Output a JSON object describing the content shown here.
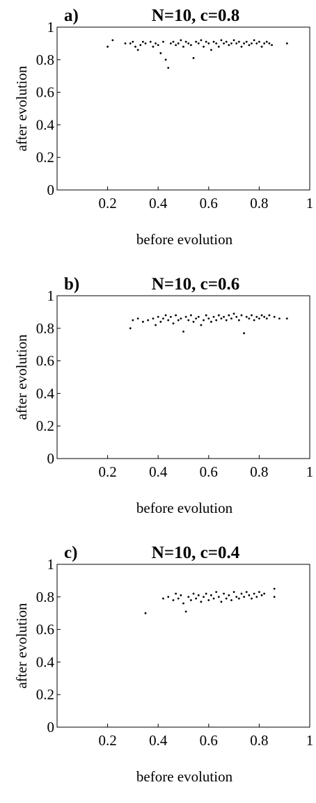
{
  "chart_data": [
    {
      "type": "scatter",
      "panel_label": "a)",
      "title": "N=10, c=0.8",
      "xlabel": "before evolution",
      "ylabel": "after evolution",
      "xlim": [
        0,
        1
      ],
      "ylim": [
        0,
        1
      ],
      "xticks": [
        0.2,
        0.4,
        0.6,
        0.8,
        1
      ],
      "yticks": [
        0,
        0.2,
        0.4,
        0.6,
        0.8,
        1
      ],
      "xtick_labels": [
        "0.2",
        "0.4",
        "0.6",
        "0.8",
        "1"
      ],
      "ytick_labels": [
        "0",
        "0.2",
        "0.4",
        "0.6",
        "0.8",
        "1"
      ],
      "grid": false,
      "points": [
        [
          0.2,
          0.88
        ],
        [
          0.22,
          0.92
        ],
        [
          0.27,
          0.9
        ],
        [
          0.29,
          0.9
        ],
        [
          0.3,
          0.91
        ],
        [
          0.31,
          0.88
        ],
        [
          0.32,
          0.86
        ],
        [
          0.33,
          0.89
        ],
        [
          0.34,
          0.91
        ],
        [
          0.35,
          0.9
        ],
        [
          0.37,
          0.91
        ],
        [
          0.38,
          0.88
        ],
        [
          0.39,
          0.9
        ],
        [
          0.4,
          0.89
        ],
        [
          0.41,
          0.84
        ],
        [
          0.42,
          0.91
        ],
        [
          0.43,
          0.8
        ],
        [
          0.44,
          0.75
        ],
        [
          0.45,
          0.9
        ],
        [
          0.46,
          0.91
        ],
        [
          0.47,
          0.89
        ],
        [
          0.48,
          0.9
        ],
        [
          0.49,
          0.92
        ],
        [
          0.5,
          0.88
        ],
        [
          0.51,
          0.91
        ],
        [
          0.52,
          0.9
        ],
        [
          0.53,
          0.89
        ],
        [
          0.54,
          0.81
        ],
        [
          0.55,
          0.91
        ],
        [
          0.56,
          0.9
        ],
        [
          0.57,
          0.92
        ],
        [
          0.58,
          0.88
        ],
        [
          0.59,
          0.91
        ],
        [
          0.6,
          0.9
        ],
        [
          0.61,
          0.86
        ],
        [
          0.62,
          0.91
        ],
        [
          0.63,
          0.9
        ],
        [
          0.64,
          0.88
        ],
        [
          0.65,
          0.92
        ],
        [
          0.66,
          0.9
        ],
        [
          0.67,
          0.91
        ],
        [
          0.68,
          0.89
        ],
        [
          0.69,
          0.9
        ],
        [
          0.7,
          0.92
        ],
        [
          0.71,
          0.9
        ],
        [
          0.72,
          0.91
        ],
        [
          0.73,
          0.88
        ],
        [
          0.74,
          0.9
        ],
        [
          0.75,
          0.91
        ],
        [
          0.76,
          0.89
        ],
        [
          0.77,
          0.9
        ],
        [
          0.78,
          0.92
        ],
        [
          0.79,
          0.9
        ],
        [
          0.8,
          0.91
        ],
        [
          0.81,
          0.88
        ],
        [
          0.82,
          0.9
        ],
        [
          0.83,
          0.91
        ],
        [
          0.84,
          0.9
        ],
        [
          0.85,
          0.89
        ],
        [
          0.91,
          0.9
        ]
      ]
    },
    {
      "type": "scatter",
      "panel_label": "b)",
      "title": "N=10, c=0.6",
      "xlabel": "before evolution",
      "ylabel": "after evolution",
      "xlim": [
        0,
        1
      ],
      "ylim": [
        0,
        1
      ],
      "xticks": [
        0.2,
        0.4,
        0.6,
        0.8,
        1
      ],
      "yticks": [
        0,
        0.2,
        0.4,
        0.6,
        0.8,
        1
      ],
      "xtick_labels": [
        "0.2",
        "0.4",
        "0.6",
        "0.8",
        "1"
      ],
      "ytick_labels": [
        "0",
        "0.2",
        "0.4",
        "0.6",
        "0.8",
        "1"
      ],
      "grid": false,
      "points": [
        [
          0.29,
          0.8
        ],
        [
          0.3,
          0.85
        ],
        [
          0.32,
          0.86
        ],
        [
          0.34,
          0.84
        ],
        [
          0.36,
          0.85
        ],
        [
          0.38,
          0.86
        ],
        [
          0.39,
          0.82
        ],
        [
          0.4,
          0.87
        ],
        [
          0.41,
          0.84
        ],
        [
          0.42,
          0.86
        ],
        [
          0.43,
          0.88
        ],
        [
          0.44,
          0.85
        ],
        [
          0.45,
          0.87
        ],
        [
          0.46,
          0.83
        ],
        [
          0.47,
          0.88
        ],
        [
          0.48,
          0.85
        ],
        [
          0.49,
          0.86
        ],
        [
          0.5,
          0.78
        ],
        [
          0.51,
          0.87
        ],
        [
          0.52,
          0.85
        ],
        [
          0.53,
          0.88
        ],
        [
          0.54,
          0.84
        ],
        [
          0.55,
          0.86
        ],
        [
          0.56,
          0.87
        ],
        [
          0.57,
          0.82
        ],
        [
          0.58,
          0.85
        ],
        [
          0.59,
          0.88
        ],
        [
          0.6,
          0.86
        ],
        [
          0.61,
          0.84
        ],
        [
          0.62,
          0.87
        ],
        [
          0.63,
          0.85
        ],
        [
          0.64,
          0.88
        ],
        [
          0.65,
          0.86
        ],
        [
          0.66,
          0.87
        ],
        [
          0.67,
          0.85
        ],
        [
          0.68,
          0.88
        ],
        [
          0.69,
          0.86
        ],
        [
          0.7,
          0.89
        ],
        [
          0.71,
          0.87
        ],
        [
          0.72,
          0.85
        ],
        [
          0.73,
          0.88
        ],
        [
          0.74,
          0.77
        ],
        [
          0.75,
          0.87
        ],
        [
          0.76,
          0.86
        ],
        [
          0.77,
          0.88
        ],
        [
          0.78,
          0.85
        ],
        [
          0.79,
          0.87
        ],
        [
          0.8,
          0.86
        ],
        [
          0.81,
          0.88
        ],
        [
          0.82,
          0.87
        ],
        [
          0.83,
          0.86
        ],
        [
          0.84,
          0.88
        ],
        [
          0.86,
          0.87
        ],
        [
          0.88,
          0.86
        ],
        [
          0.91,
          0.86
        ]
      ]
    },
    {
      "type": "scatter",
      "panel_label": "c)",
      "title": "N=10, c=0.4",
      "xlabel": "before evolution",
      "ylabel": "after evolution",
      "xlim": [
        0,
        1
      ],
      "ylim": [
        0,
        1
      ],
      "xticks": [
        0.2,
        0.4,
        0.6,
        0.8,
        1
      ],
      "yticks": [
        0,
        0.2,
        0.4,
        0.6,
        0.8,
        1
      ],
      "xtick_labels": [
        "0.2",
        "0.4",
        "0.6",
        "0.8",
        "1"
      ],
      "ytick_labels": [
        "0",
        "0.2",
        "0.4",
        "0.6",
        "0.8",
        "1"
      ],
      "grid": false,
      "points": [
        [
          0.35,
          0.7
        ],
        [
          0.42,
          0.79
        ],
        [
          0.44,
          0.8
        ],
        [
          0.46,
          0.78
        ],
        [
          0.47,
          0.82
        ],
        [
          0.48,
          0.79
        ],
        [
          0.49,
          0.81
        ],
        [
          0.5,
          0.76
        ],
        [
          0.51,
          0.71
        ],
        [
          0.52,
          0.8
        ],
        [
          0.53,
          0.78
        ],
        [
          0.54,
          0.82
        ],
        [
          0.55,
          0.79
        ],
        [
          0.56,
          0.81
        ],
        [
          0.57,
          0.77
        ],
        [
          0.58,
          0.8
        ],
        [
          0.59,
          0.82
        ],
        [
          0.6,
          0.78
        ],
        [
          0.61,
          0.81
        ],
        [
          0.62,
          0.79
        ],
        [
          0.63,
          0.83
        ],
        [
          0.64,
          0.8
        ],
        [
          0.65,
          0.77
        ],
        [
          0.66,
          0.82
        ],
        [
          0.67,
          0.79
        ],
        [
          0.68,
          0.81
        ],
        [
          0.69,
          0.78
        ],
        [
          0.7,
          0.83
        ],
        [
          0.71,
          0.8
        ],
        [
          0.72,
          0.79
        ],
        [
          0.73,
          0.82
        ],
        [
          0.74,
          0.8
        ],
        [
          0.75,
          0.83
        ],
        [
          0.76,
          0.81
        ],
        [
          0.77,
          0.79
        ],
        [
          0.78,
          0.82
        ],
        [
          0.79,
          0.8
        ],
        [
          0.8,
          0.83
        ],
        [
          0.81,
          0.81
        ],
        [
          0.82,
          0.82
        ],
        [
          0.86,
          0.85
        ],
        [
          0.86,
          0.8
        ]
      ]
    }
  ]
}
